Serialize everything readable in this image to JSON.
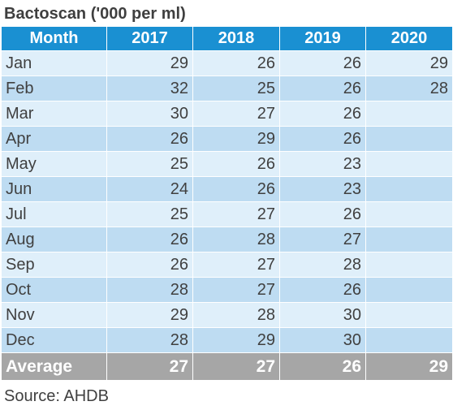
{
  "title": "Bactoscan ('000 per ml)",
  "table": {
    "headers": [
      "Month",
      "2017",
      "2018",
      "2019",
      "2020"
    ],
    "rows": [
      [
        "Jan",
        "29",
        "26",
        "26",
        "29"
      ],
      [
        "Feb",
        "32",
        "25",
        "26",
        "28"
      ],
      [
        "Mar",
        "30",
        "27",
        "26",
        ""
      ],
      [
        "Apr",
        "26",
        "29",
        "26",
        ""
      ],
      [
        "May",
        "25",
        "26",
        "23",
        ""
      ],
      [
        "Jun",
        "24",
        "26",
        "23",
        ""
      ],
      [
        "Jul",
        "25",
        "27",
        "26",
        ""
      ],
      [
        "Aug",
        "26",
        "28",
        "27",
        ""
      ],
      [
        "Sep",
        "26",
        "27",
        "28",
        ""
      ],
      [
        "Oct",
        "28",
        "27",
        "26",
        ""
      ],
      [
        "Nov",
        "29",
        "28",
        "30",
        ""
      ],
      [
        "Dec",
        "28",
        "29",
        "30",
        ""
      ]
    ],
    "footer": [
      "Average",
      "27",
      "27",
      "26",
      "29"
    ]
  },
  "source": "Source: AHDB",
  "colors": {
    "header_bg": "#1a90d2",
    "row_light": "#dfeffa",
    "row_dark": "#bedcf2",
    "footer_bg": "#a6a6a6"
  }
}
